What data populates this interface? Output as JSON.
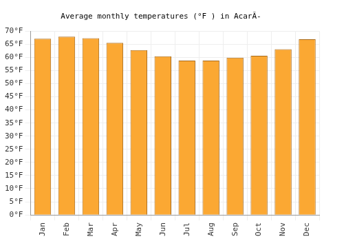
{
  "chart_data": {
    "type": "bar",
    "title": "Average monthly temperatures (°F ) in AcarÃ-",
    "categories": [
      "Jan",
      "Feb",
      "Mar",
      "Apr",
      "May",
      "Jun",
      "Jul",
      "Aug",
      "Sep",
      "Oct",
      "Nov",
      "Dec"
    ],
    "values": [
      67.1,
      67.9,
      67.3,
      65.5,
      62.8,
      60.4,
      58.8,
      58.8,
      59.9,
      60.6,
      63.1,
      66.9
    ],
    "color": "#fba833",
    "ylim": [
      0,
      70
    ],
    "yticks": [
      {
        "value": 0,
        "label": "0°F"
      },
      {
        "value": 5,
        "label": "5°F"
      },
      {
        "value": 10,
        "label": "10°F"
      },
      {
        "value": 15,
        "label": "15°F"
      },
      {
        "value": 20,
        "label": "20°F"
      },
      {
        "value": 25,
        "label": "25°F"
      },
      {
        "value": 30,
        "label": "30°F"
      },
      {
        "value": 35,
        "label": "35°F"
      },
      {
        "value": 40,
        "label": "40°F"
      },
      {
        "value": 45,
        "label": "45°F"
      },
      {
        "value": 50,
        "label": "50°F"
      },
      {
        "value": 55,
        "label": "55°F"
      },
      {
        "value": 60,
        "label": "60°F"
      },
      {
        "value": 65,
        "label": "65°F"
      },
      {
        "value": 70,
        "label": "70°F"
      }
    ],
    "grid": true
  }
}
